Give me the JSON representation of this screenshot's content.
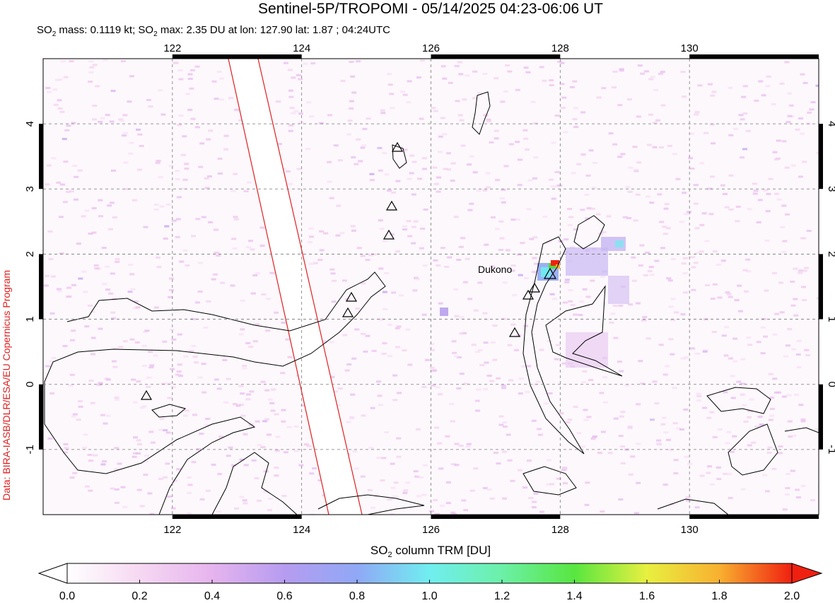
{
  "header": {
    "title": "Sentinel-5P/TROPOMI - 05/14/2025 04:23-06:06 UT",
    "subtitle": [
      "SO",
      "2",
      " mass: 0.1119 kt; SO",
      "2",
      " max: 2.35 DU at lon: 127.90 lat: 1.87 ; 04:24UTC"
    ]
  },
  "map": {
    "xlim": [
      120,
      132
    ],
    "ylim": [
      -2,
      5
    ],
    "xticks": [
      122,
      124,
      126,
      128,
      130
    ],
    "yticks": [
      -1,
      0,
      1,
      2,
      3,
      4
    ],
    "volcano_label": "Dukono"
  },
  "colorbar": {
    "label": [
      "SO",
      "2",
      " column TRM [DU]"
    ],
    "range": [
      0,
      2
    ],
    "ticks": [
      {
        "value": 0,
        "label": "0.0"
      },
      0.2,
      0.4,
      0.6,
      0.8,
      {
        "value": 1,
        "label": "1.0"
      },
      1.2,
      1.4,
      1.6,
      1.8,
      {
        "value": 2,
        "label": "2.0"
      }
    ]
  },
  "credit": "Data: BIRA-IASB/DLR/ESA/EU Copernicus Program"
}
